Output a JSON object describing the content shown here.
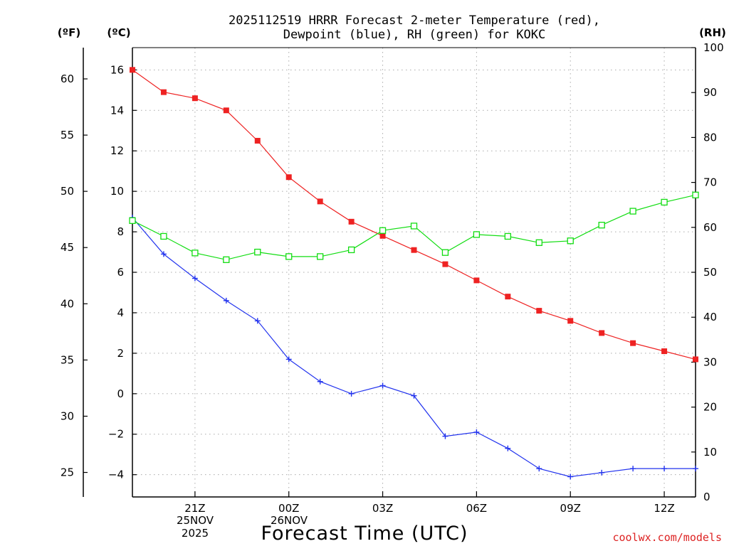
{
  "title_line1": "2025112519 HRRR Forecast 2-meter Temperature (red),",
  "title_line2": "Dewpoint (blue), RH (green) for KOKC",
  "units": {
    "fahrenheit": "(ºF)",
    "celsius": "(ºC)",
    "rh": "(RH)"
  },
  "xlabel": "Forecast Time (UTC)",
  "credit": "coolwx.com/models",
  "date_labels": {
    "day1": "25NOV",
    "year": "2025",
    "day2": "26NOV"
  },
  "colors": {
    "temp": "#ee2222",
    "dew": "#2233ee",
    "rh": "#11dd11",
    "credit": "#dd2222",
    "grid": "#aaaaaa"
  },
  "chart_data": {
    "type": "line",
    "x_hours": [
      19,
      20,
      21,
      22,
      23,
      24,
      25,
      26,
      27,
      28,
      29,
      30,
      31,
      32,
      33,
      34,
      35,
      36,
      37
    ],
    "xlim": [
      19,
      37
    ],
    "x_ticks": [
      {
        "hour": 21,
        "label": "21Z"
      },
      {
        "hour": 24,
        "label": "00Z"
      },
      {
        "hour": 27,
        "label": "03Z"
      },
      {
        "hour": 30,
        "label": "06Z"
      },
      {
        "hour": 33,
        "label": "09Z"
      },
      {
        "hour": 36,
        "label": "12Z"
      }
    ],
    "celsius_axis": {
      "lim": [
        -5.1,
        17.1
      ],
      "ticks": [
        "16",
        "14",
        "12",
        "10",
        "8",
        "6",
        "4",
        "2",
        "0",
        "−2",
        "−4"
      ],
      "tick_values": [
        16,
        14,
        12,
        10,
        8,
        6,
        4,
        2,
        0,
        -2,
        -4
      ]
    },
    "fahrenheit_axis": {
      "ticks": [
        "60",
        "55",
        "50",
        "45",
        "40",
        "35",
        "30",
        "25"
      ],
      "tick_values": [
        60,
        55,
        50,
        45,
        40,
        35,
        30,
        25
      ]
    },
    "rh_axis": {
      "lim": [
        0,
        100
      ],
      "ticks": [
        "100",
        "90",
        "80",
        "70",
        "60",
        "50",
        "40",
        "30",
        "20",
        "10",
        "0"
      ],
      "tick_values": [
        100,
        90,
        80,
        70,
        60,
        50,
        40,
        30,
        20,
        10,
        0
      ]
    },
    "series": [
      {
        "name": "2-meter Temperature",
        "axis": "celsius",
        "marker": "filled-square",
        "values": [
          16.0,
          14.9,
          14.6,
          14.0,
          12.5,
          10.7,
          9.5,
          8.5,
          7.8,
          7.1,
          6.4,
          5.6,
          4.8,
          4.1,
          3.6,
          3.0,
          2.5,
          2.1,
          1.7
        ]
      },
      {
        "name": "Dewpoint",
        "axis": "celsius",
        "marker": "plus",
        "values": [
          8.7,
          6.9,
          5.7,
          4.6,
          3.6,
          1.7,
          0.6,
          0.0,
          0.4,
          -0.1,
          -2.1,
          -1.9,
          -2.7,
          -3.7,
          -4.1,
          -3.9,
          -3.7,
          -3.7,
          -3.7
        ]
      },
      {
        "name": "RH",
        "axis": "rh",
        "marker": "open-square",
        "values": [
          61.5,
          58.0,
          54.3,
          52.8,
          54.5,
          53.5,
          53.5,
          55.0,
          59.3,
          60.3,
          54.4,
          58.4,
          58.0,
          56.6,
          57.0,
          60.5,
          63.6,
          65.6,
          67.2
        ]
      }
    ]
  }
}
